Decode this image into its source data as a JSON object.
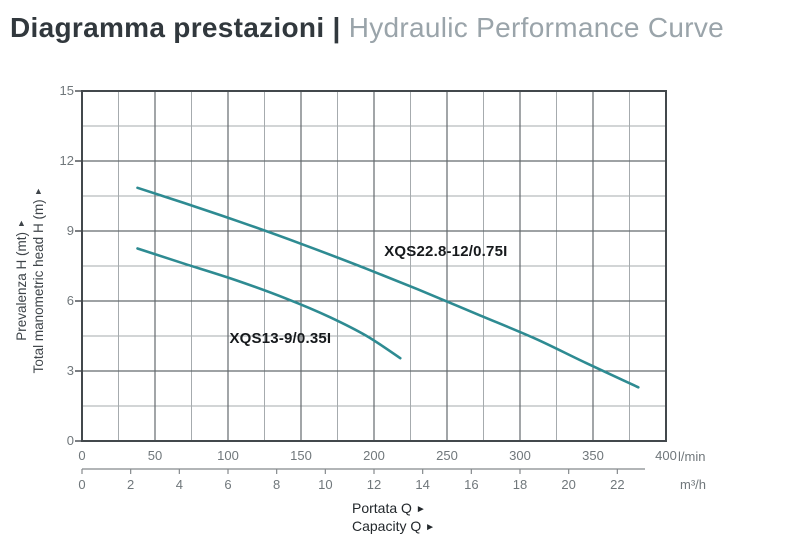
{
  "title": {
    "primary": "Diagramma prestazioni |",
    "secondary": "Hydraulic Performance Curve"
  },
  "chart_data": {
    "type": "line",
    "title": "Hydraulic Performance Curve",
    "grid": true,
    "legend_position": "inline-labels",
    "x_axis": {
      "unit": "l/min",
      "min": 0,
      "max": 400,
      "major_tick_step": 50,
      "minor_grid_step": 25,
      "tick_labels": [
        0,
        50,
        100,
        150,
        200,
        250,
        300,
        350,
        400
      ]
    },
    "x_axis_secondary": {
      "unit": "m³/h",
      "min": 0,
      "max": 22,
      "lmin_per_unit": 16.6667,
      "tick_labels": [
        0,
        2,
        4,
        6,
        8,
        10,
        12,
        14,
        16,
        18,
        20,
        22
      ]
    },
    "y_axis": {
      "label_line1": "Prevalenza H (mt)",
      "label_line2": "Total manometric head H (m)",
      "arrow": "▲",
      "min": 0,
      "max": 15,
      "major_tick_step": 3,
      "minor_grid_step": 1.5,
      "tick_labels": [
        0,
        3,
        6,
        9,
        12,
        15
      ]
    },
    "series": [
      {
        "name": "XQS22.8-12/0.75I",
        "color": "#2e8b92",
        "points": [
          [
            38,
            10.85
          ],
          [
            70,
            10.2
          ],
          [
            110,
            9.35
          ],
          [
            150,
            8.45
          ],
          [
            190,
            7.5
          ],
          [
            230,
            6.5
          ],
          [
            270,
            5.45
          ],
          [
            310,
            4.4
          ],
          [
            345,
            3.35
          ],
          [
            381,
            2.3
          ]
        ],
        "label_pos": [
          207,
          8.49
        ]
      },
      {
        "name": "XQS13-9/0.35I",
        "color": "#2e8b92",
        "points": [
          [
            38,
            8.25
          ],
          [
            70,
            7.6
          ],
          [
            105,
            6.9
          ],
          [
            140,
            6.1
          ],
          [
            170,
            5.3
          ],
          [
            195,
            4.5
          ],
          [
            218,
            3.55
          ]
        ],
        "label_pos": [
          101,
          4.76
        ]
      }
    ],
    "colors": {
      "curve": "#2e8b92",
      "grid_major": "#646a6e",
      "grid_minor": "#a6abae",
      "plot_border": "#43484c",
      "ruler": "#85898c",
      "tick_text": "#70777b"
    }
  },
  "footer": {
    "line1": "Portata Q",
    "line2": "Capacity Q",
    "arrow": "►"
  }
}
